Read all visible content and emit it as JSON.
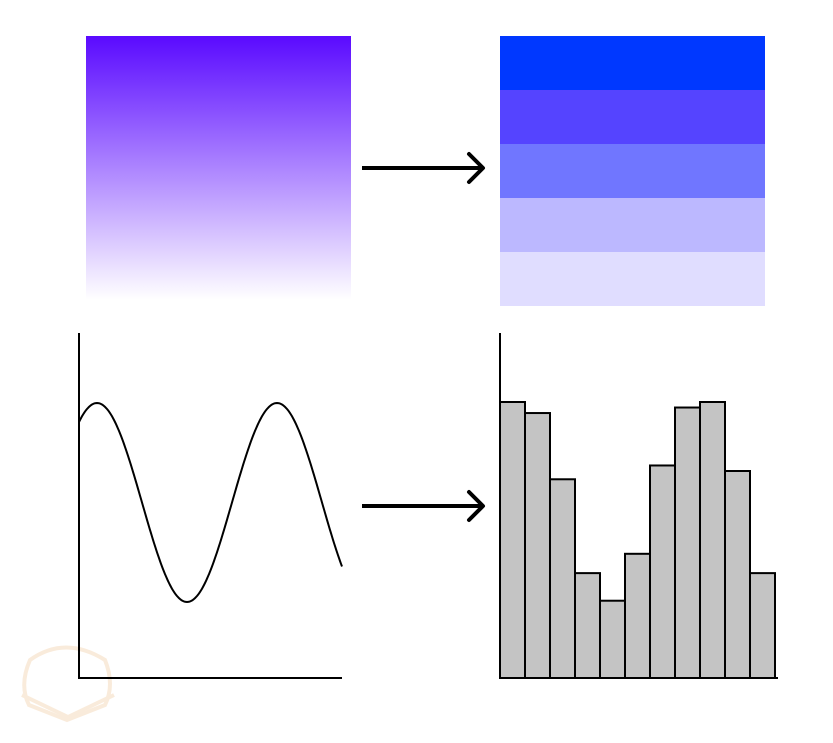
{
  "colors": {
    "gradient_top": "#5a0aff",
    "gradient_bottom": "#ffffff",
    "bands": [
      "#0038ff",
      "#5544ff",
      "#7076ff",
      "#bcb8ff",
      "#e0ddff"
    ],
    "bar_fill": "#c4c4c4",
    "stroke": "#000000",
    "watermark": "#f6e2c8"
  },
  "chart_data": {
    "type": "bar",
    "values": [
      100,
      96,
      72,
      38,
      28,
      45,
      77,
      98,
      100,
      75,
      38
    ],
    "ylim": [
      0,
      125
    ],
    "grid": false
  },
  "icons": {
    "arrow": "right-arrow-icon",
    "watermark": "bear-logo"
  }
}
